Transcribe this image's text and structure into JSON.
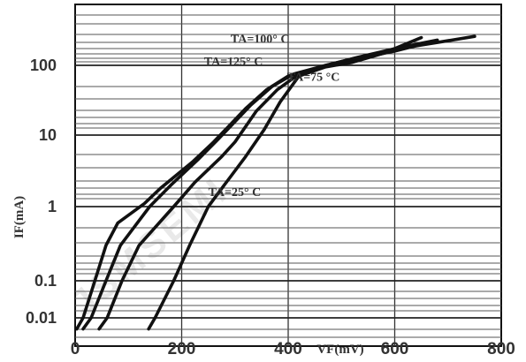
{
  "chart_data": {
    "type": "line",
    "title": "",
    "xlabel": "VF(mV)",
    "ylabel": "IF(mA)",
    "x_ticks": [
      "0",
      "200",
      "400",
      "600",
      "800"
    ],
    "y_tick_labels": [
      "0.01",
      "0.1",
      "1",
      "10",
      "100"
    ],
    "xlim": [
      0,
      800
    ],
    "ylim_log": [
      0.005,
      400
    ],
    "log_y": true,
    "grid": true,
    "watermark": "JSMSEMI",
    "series": [
      {
        "name": "TA=125° C",
        "label_text": "TA=125° C",
        "label_at": [
          242,
          100
        ],
        "x": [
          3,
          15,
          37,
          58,
          80,
          130,
          160,
          220,
          260,
          320,
          360,
          400,
          450,
          520,
          600,
          650
        ],
        "y": [
          0.005,
          0.01,
          0.1,
          0.3,
          0.6,
          1.1,
          1.8,
          4.2,
          8,
          24,
          45,
          70,
          90,
          120,
          160,
          200
        ]
      },
      {
        "name": "TA=100° C",
        "label_text": "TA=100° C",
        "label_at": [
          292,
          210
        ],
        "x": [
          15,
          30,
          58,
          85,
          140,
          180,
          230,
          270,
          330,
          370,
          410,
          460,
          530,
          610,
          680
        ],
        "y": [
          0.005,
          0.01,
          0.1,
          0.3,
          1,
          2,
          4.5,
          9,
          27,
          50,
          75,
          95,
          130,
          180,
          230
        ]
      },
      {
        "name": "TA=75 °C",
        "label_text": "TA=75 °C",
        "label_at": [
          398,
          60
        ],
        "x": [
          45,
          60,
          88,
          120,
          185,
          225,
          275,
          300,
          340,
          380,
          420,
          470,
          550,
          640,
          750
        ],
        "y": [
          0.005,
          0.01,
          0.1,
          0.3,
          1,
          2.2,
          5,
          8,
          22,
          45,
          75,
          100,
          140,
          190,
          260
        ]
      },
      {
        "name": "TA=25° C",
        "label_text": "TA=25° C",
        "label_at": [
          250,
          1.4
        ],
        "x": [
          138,
          150,
          185,
          215,
          250,
          280,
          320,
          355,
          385,
          420,
          470,
          520,
          580,
          650
        ],
        "y": [
          0.005,
          0.01,
          0.1,
          0.3,
          1,
          2,
          5,
          12,
          30,
          70,
          95,
          110,
          150,
          250
        ]
      }
    ]
  }
}
